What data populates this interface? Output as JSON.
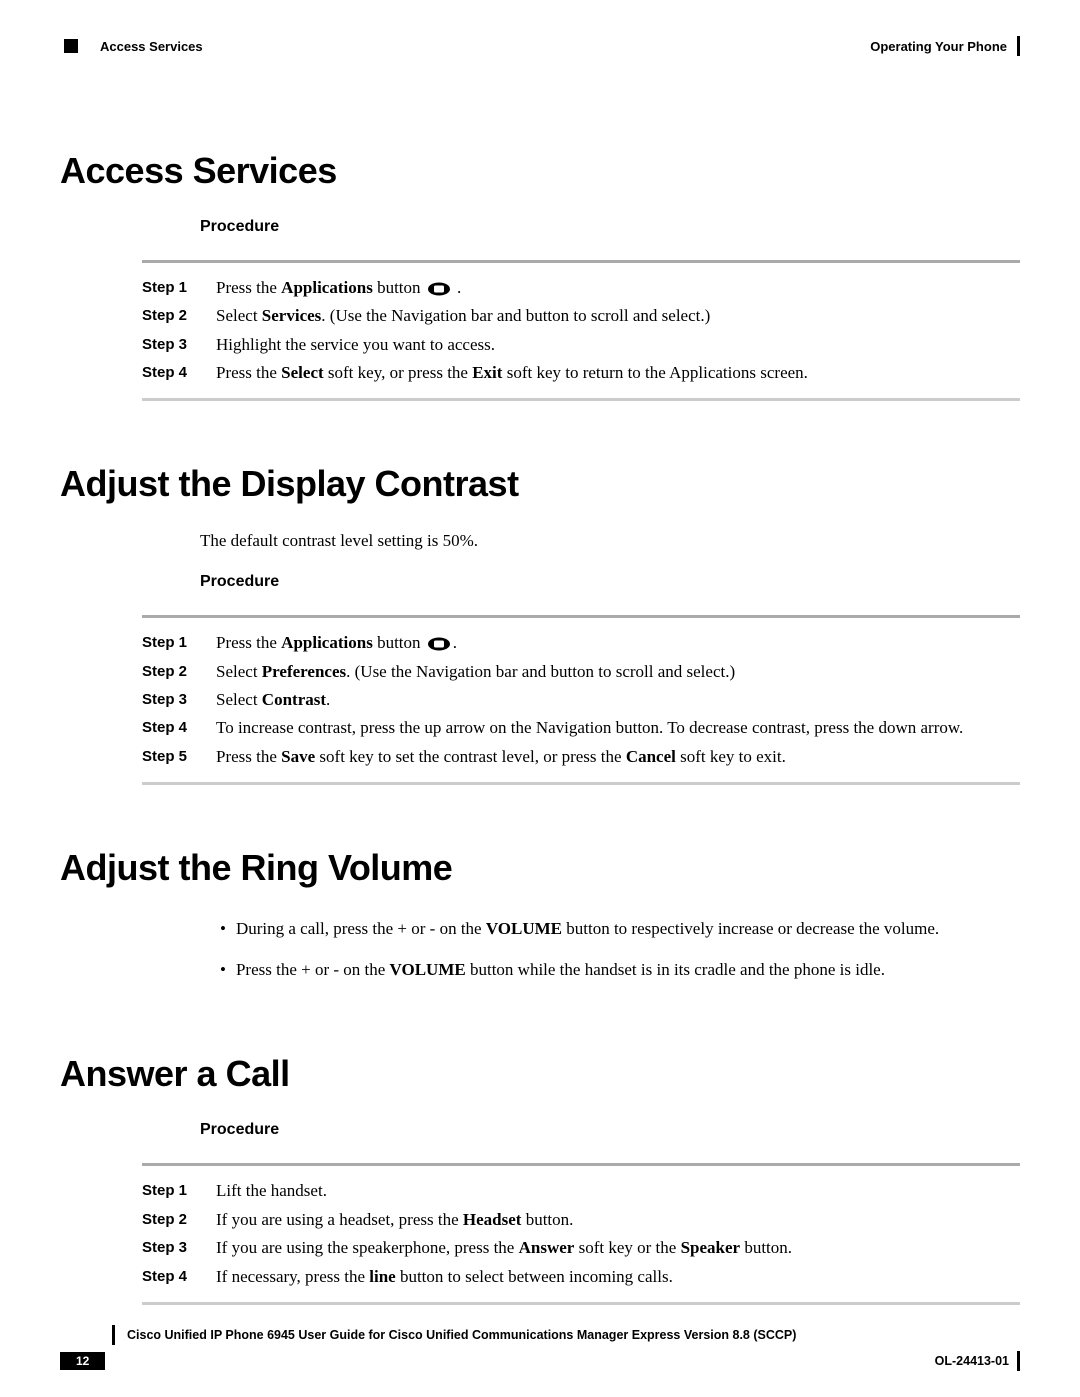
{
  "header": {
    "left_title": "Access Services",
    "right_title": "Operating Your Phone"
  },
  "sections": {
    "access_services": {
      "heading": "Access Services",
      "proc_label": "Procedure",
      "steps": [
        {
          "label": "Step 1",
          "parts": [
            "Press the ",
            "Applications",
            " button ",
            "ICON",
            " ."
          ]
        },
        {
          "label": "Step 2",
          "parts": [
            "Select ",
            "Services",
            ". (Use the Navigation bar and button to scroll and select.)"
          ]
        },
        {
          "label": "Step 3",
          "parts": [
            "Highlight the service you want to access."
          ]
        },
        {
          "label": "Step 4",
          "parts": [
            "Press the ",
            "Select",
            " soft key, or press the ",
            "Exit",
            " soft key to return to the Applications screen."
          ]
        }
      ]
    },
    "display_contrast": {
      "heading": "Adjust the Display Contrast",
      "intro": "The default contrast level setting is 50%.",
      "proc_label": "Procedure",
      "steps": [
        {
          "label": "Step 1",
          "parts": [
            "Press the ",
            "Applications",
            " button ",
            "ICON",
            "."
          ]
        },
        {
          "label": "Step 2",
          "parts": [
            "Select ",
            "Preferences",
            ". (Use the Navigation bar and button to scroll and select.)"
          ]
        },
        {
          "label": "Step 3",
          "parts": [
            "Select ",
            "Contrast",
            "."
          ]
        },
        {
          "label": "Step 4",
          "parts": [
            "To increase contrast, press the up arrow on the Navigation button. To decrease contrast, press the down arrow."
          ]
        },
        {
          "label": "Step 5",
          "parts": [
            "Press the ",
            "Save",
            " soft key to set the contrast level, or press the ",
            "Cancel",
            " soft key to exit."
          ]
        }
      ]
    },
    "ring_volume": {
      "heading": "Adjust the Ring Volume",
      "bullets": [
        [
          "During a call, press the + or - on the ",
          "VOLUME",
          " button to respectively increase or decrease the volume."
        ],
        [
          "Press the + or - on the ",
          "VOLUME",
          " button while the handset is in its cradle and the phone is idle."
        ]
      ]
    },
    "answer_call": {
      "heading": "Answer a Call",
      "proc_label": "Procedure",
      "steps": [
        {
          "label": "Step 1",
          "parts": [
            "Lift the handset."
          ]
        },
        {
          "label": "Step 2",
          "parts": [
            "If you are using a headset, press the ",
            "Headset",
            " button."
          ]
        },
        {
          "label": "Step 3",
          "parts": [
            "If you are using the speakerphone, press the ",
            "Answer",
            " soft key or the ",
            "Speaker",
            " button."
          ]
        },
        {
          "label": "Step 4",
          "parts": [
            "If necessary, press the ",
            "line",
            " button to select between incoming calls."
          ]
        }
      ]
    }
  },
  "footer": {
    "doc_title": "Cisco Unified IP Phone 6945 User Guide for Cisco Unified Communications Manager Express Version 8.8 (SCCP)",
    "page_number": "12",
    "doc_code": "OL-24413-01"
  },
  "style": {
    "heading_fontsize": 36,
    "proc_fontsize": 16,
    "body_fontsize": 17,
    "step_label_fontsize": 15,
    "hr_color": "#aaaaaa",
    "text_color": "#000000",
    "background_color": "#ffffff"
  }
}
